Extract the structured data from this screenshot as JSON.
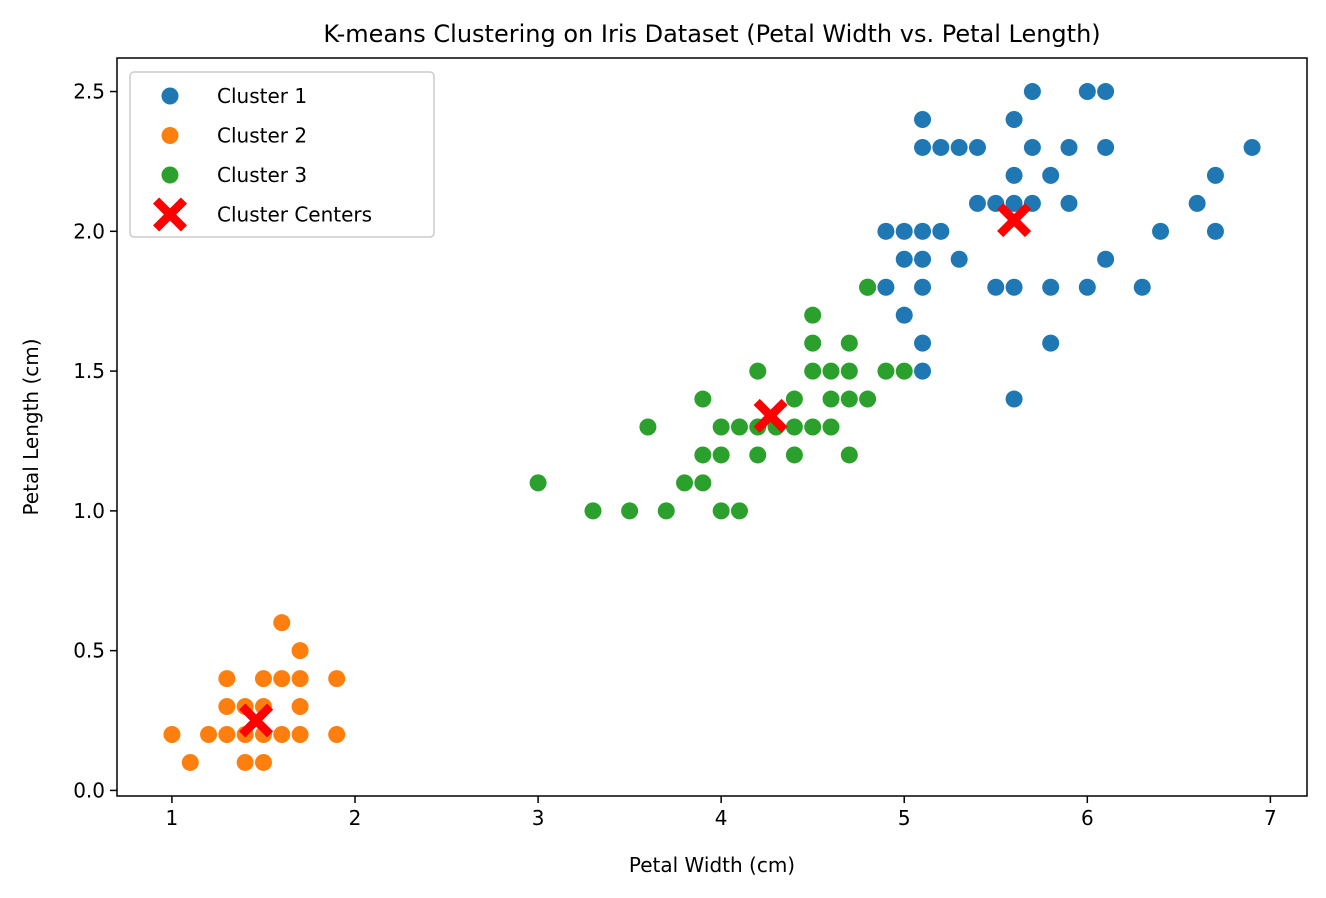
{
  "chart_data": {
    "type": "scatter",
    "title": "K-means Clustering on Iris Dataset (Petal Width vs. Petal Length)",
    "xlabel": "Petal Width (cm)",
    "ylabel": "Petal Length (cm)",
    "xlim": [
      0.7,
      7.2
    ],
    "ylim": [
      -0.02,
      2.62
    ],
    "xticks": [
      1,
      2,
      3,
      4,
      5,
      6,
      7
    ],
    "yticks": [
      0.0,
      0.5,
      1.0,
      1.5,
      2.0,
      2.5
    ],
    "grid": false,
    "legend_position": "upper-left",
    "series": [
      {
        "name": "Cluster 1",
        "color": "#1f77b4",
        "marker": "circle",
        "points": [
          [
            6.0,
            2.5
          ],
          [
            6.1,
            2.5
          ],
          [
            5.7,
            2.5
          ],
          [
            5.6,
            2.4
          ],
          [
            5.1,
            2.4
          ],
          [
            5.1,
            2.3
          ],
          [
            5.2,
            2.3
          ],
          [
            5.3,
            2.3
          ],
          [
            5.4,
            2.3
          ],
          [
            5.7,
            2.3
          ],
          [
            5.9,
            2.3
          ],
          [
            6.1,
            2.3
          ],
          [
            6.9,
            2.3
          ],
          [
            5.6,
            2.2
          ],
          [
            5.8,
            2.2
          ],
          [
            6.7,
            2.2
          ],
          [
            5.4,
            2.1
          ],
          [
            5.5,
            2.1
          ],
          [
            5.6,
            2.1
          ],
          [
            5.7,
            2.1
          ],
          [
            5.9,
            2.1
          ],
          [
            6.6,
            2.1
          ],
          [
            4.9,
            2.0
          ],
          [
            5.0,
            2.0
          ],
          [
            5.1,
            2.0
          ],
          [
            5.2,
            2.0
          ],
          [
            6.4,
            2.0
          ],
          [
            6.7,
            2.0
          ],
          [
            5.0,
            1.9
          ],
          [
            5.1,
            1.9
          ],
          [
            5.3,
            1.9
          ],
          [
            6.1,
            1.9
          ],
          [
            4.8,
            1.8
          ],
          [
            4.9,
            1.8
          ],
          [
            5.1,
            1.8
          ],
          [
            5.5,
            1.8
          ],
          [
            5.6,
            1.8
          ],
          [
            5.8,
            1.8
          ],
          [
            6.0,
            1.8
          ],
          [
            6.3,
            1.8
          ],
          [
            5.0,
            1.7
          ],
          [
            5.1,
            1.6
          ],
          [
            5.8,
            1.6
          ],
          [
            5.1,
            1.5
          ],
          [
            5.6,
            1.4
          ]
        ]
      },
      {
        "name": "Cluster 2",
        "color": "#ff7f0e",
        "marker": "circle",
        "points": [
          [
            1.6,
            0.6
          ],
          [
            1.7,
            0.5
          ],
          [
            1.3,
            0.4
          ],
          [
            1.5,
            0.4
          ],
          [
            1.6,
            0.4
          ],
          [
            1.7,
            0.4
          ],
          [
            1.9,
            0.4
          ],
          [
            1.3,
            0.3
          ],
          [
            1.4,
            0.3
          ],
          [
            1.5,
            0.3
          ],
          [
            1.7,
            0.3
          ],
          [
            1.0,
            0.2
          ],
          [
            1.2,
            0.2
          ],
          [
            1.3,
            0.2
          ],
          [
            1.4,
            0.2
          ],
          [
            1.5,
            0.2
          ],
          [
            1.6,
            0.2
          ],
          [
            1.7,
            0.2
          ],
          [
            1.9,
            0.2
          ],
          [
            1.1,
            0.1
          ],
          [
            1.4,
            0.1
          ],
          [
            1.5,
            0.1
          ]
        ]
      },
      {
        "name": "Cluster 3",
        "color": "#2ca02c",
        "marker": "circle",
        "points": [
          [
            4.8,
            1.8
          ],
          [
            4.5,
            1.7
          ],
          [
            4.5,
            1.6
          ],
          [
            4.7,
            1.6
          ],
          [
            4.2,
            1.5
          ],
          [
            4.5,
            1.5
          ],
          [
            4.6,
            1.5
          ],
          [
            4.7,
            1.5
          ],
          [
            4.9,
            1.5
          ],
          [
            5.0,
            1.5
          ],
          [
            3.9,
            1.4
          ],
          [
            4.4,
            1.4
          ],
          [
            4.6,
            1.4
          ],
          [
            4.7,
            1.4
          ],
          [
            4.8,
            1.4
          ],
          [
            3.6,
            1.3
          ],
          [
            4.0,
            1.3
          ],
          [
            4.1,
            1.3
          ],
          [
            4.2,
            1.3
          ],
          [
            4.3,
            1.3
          ],
          [
            4.4,
            1.3
          ],
          [
            4.5,
            1.3
          ],
          [
            4.6,
            1.3
          ],
          [
            3.9,
            1.2
          ],
          [
            4.0,
            1.2
          ],
          [
            4.2,
            1.2
          ],
          [
            4.4,
            1.2
          ],
          [
            4.7,
            1.2
          ],
          [
            3.0,
            1.1
          ],
          [
            3.8,
            1.1
          ],
          [
            3.9,
            1.1
          ],
          [
            3.3,
            1.0
          ],
          [
            3.5,
            1.0
          ],
          [
            3.7,
            1.0
          ],
          [
            4.0,
            1.0
          ],
          [
            4.1,
            1.0
          ]
        ]
      },
      {
        "name": "Cluster Centers",
        "color": "#ff0000",
        "marker": "x-filled",
        "points": [
          [
            5.6,
            2.04
          ],
          [
            1.46,
            0.25
          ],
          [
            4.27,
            1.34
          ]
        ]
      }
    ]
  }
}
